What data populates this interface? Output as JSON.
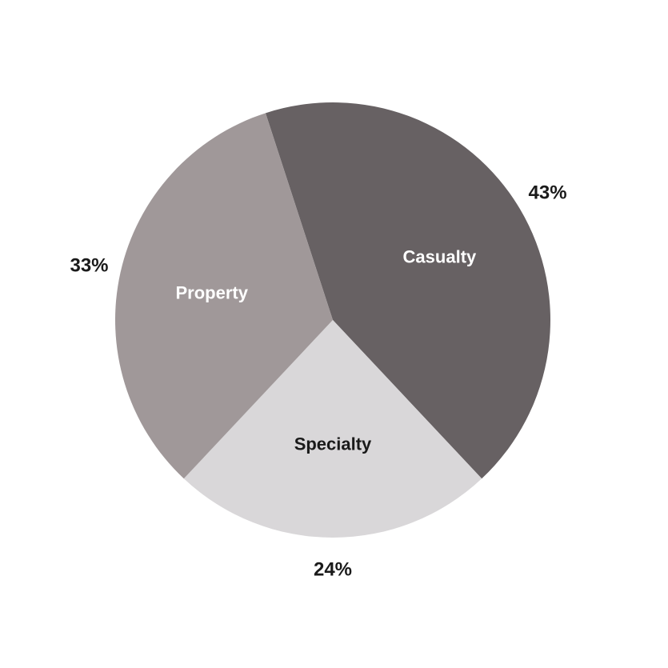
{
  "chart_data": {
    "type": "pie",
    "title": "",
    "slices": [
      {
        "label": "Casualty",
        "value": 43,
        "value_label": "43%",
        "color": "#676163",
        "label_color": "#ffffff"
      },
      {
        "label": "Specialty",
        "value": 24,
        "value_label": "24%",
        "color": "#d9d7d9",
        "label_color": "#1a1a1a"
      },
      {
        "label": "Property",
        "value": 33,
        "value_label": "33%",
        "color": "#a09899",
        "label_color": "#ffffff"
      }
    ],
    "start_angle_deg": -18,
    "direction": "clockwise",
    "legend": "none"
  }
}
